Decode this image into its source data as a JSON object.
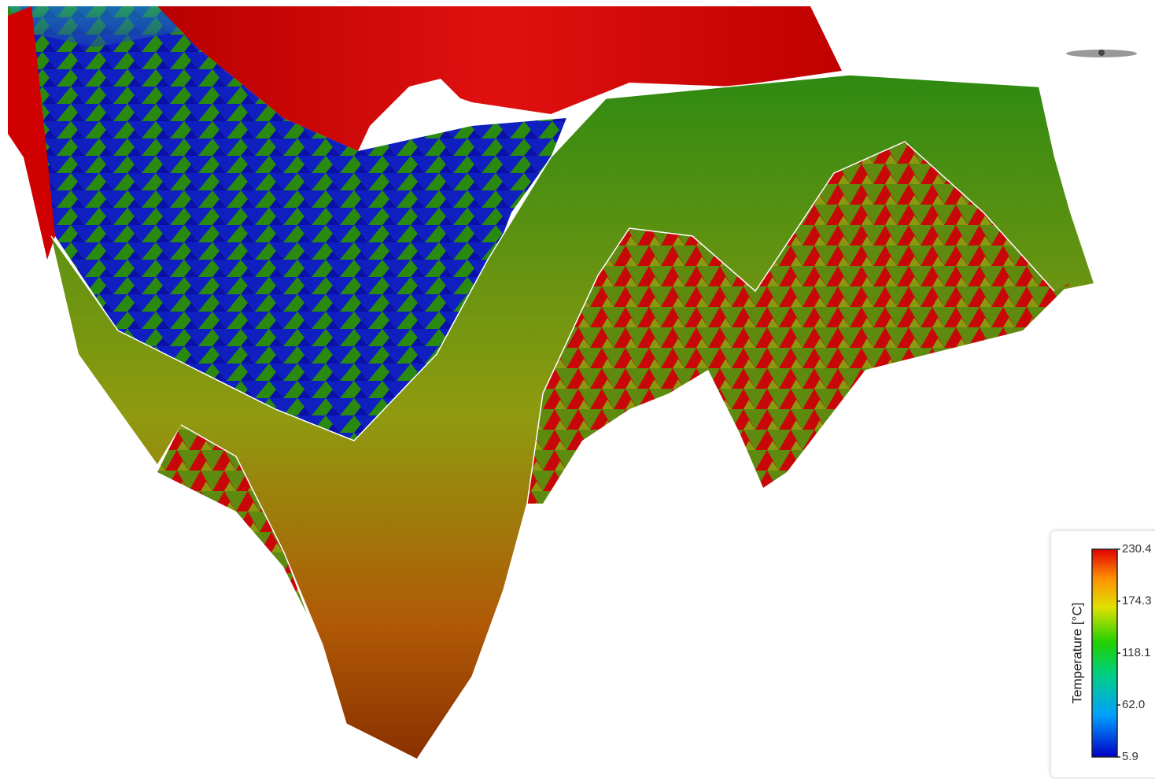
{
  "colorbar": {
    "title": "Temperature [°C]",
    "range": [
      5.9,
      230.4
    ],
    "ticks": [
      230.4,
      174.3,
      118.1,
      {
        "value": 62,
        "label": "62.0"
      },
      5.9
    ]
  }
}
